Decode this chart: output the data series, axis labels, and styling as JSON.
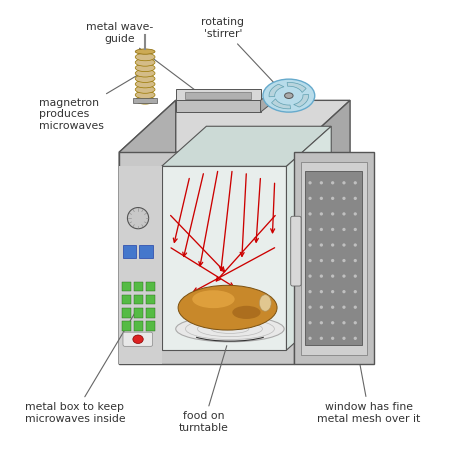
{
  "bg_color": "#ffffff",
  "labels": {
    "stirrer": "rotating\n'stirrer'",
    "waveguide": "metal wave-\nguide",
    "magnetron": "magnetron\nproduces\nmicrowaves",
    "metal_box": "metal box to keep\nmicrowaves inside",
    "food": "food on\nturntable",
    "window": "window has fine\nmetal mesh over it"
  },
  "body_front_color": "#c8c8c8",
  "body_top_color": "#d8d8d8",
  "body_side_color": "#a0a0a0",
  "body_left_dark": "#888888",
  "interior_color": "#e8eeee",
  "interior_top": "#d0dcd8",
  "door_color": "#b0b0b0",
  "door_mesh_color": "#888888",
  "door_edge_color": "#999999",
  "arrow_color": "#cc0000",
  "stirrer_bg": "#b8dcea",
  "stirrer_blade": "#8abccc",
  "stirrer_hub": "#888888",
  "magnetron_coil": "#d4bc88",
  "magnetron_tip": "#ccaa66",
  "food_color": "#c8882a",
  "food_light": "#e8aa44",
  "food_dark": "#8a5010",
  "turntable_color": "#e8e8e8",
  "display_blue": "#4477cc",
  "display_green": "#55bb44",
  "button_red": "#dd2222",
  "waveguide_top": "#d0d0d0",
  "waveguide_side": "#aaaaaa",
  "text_color": "#333333",
  "line_color": "#555555"
}
